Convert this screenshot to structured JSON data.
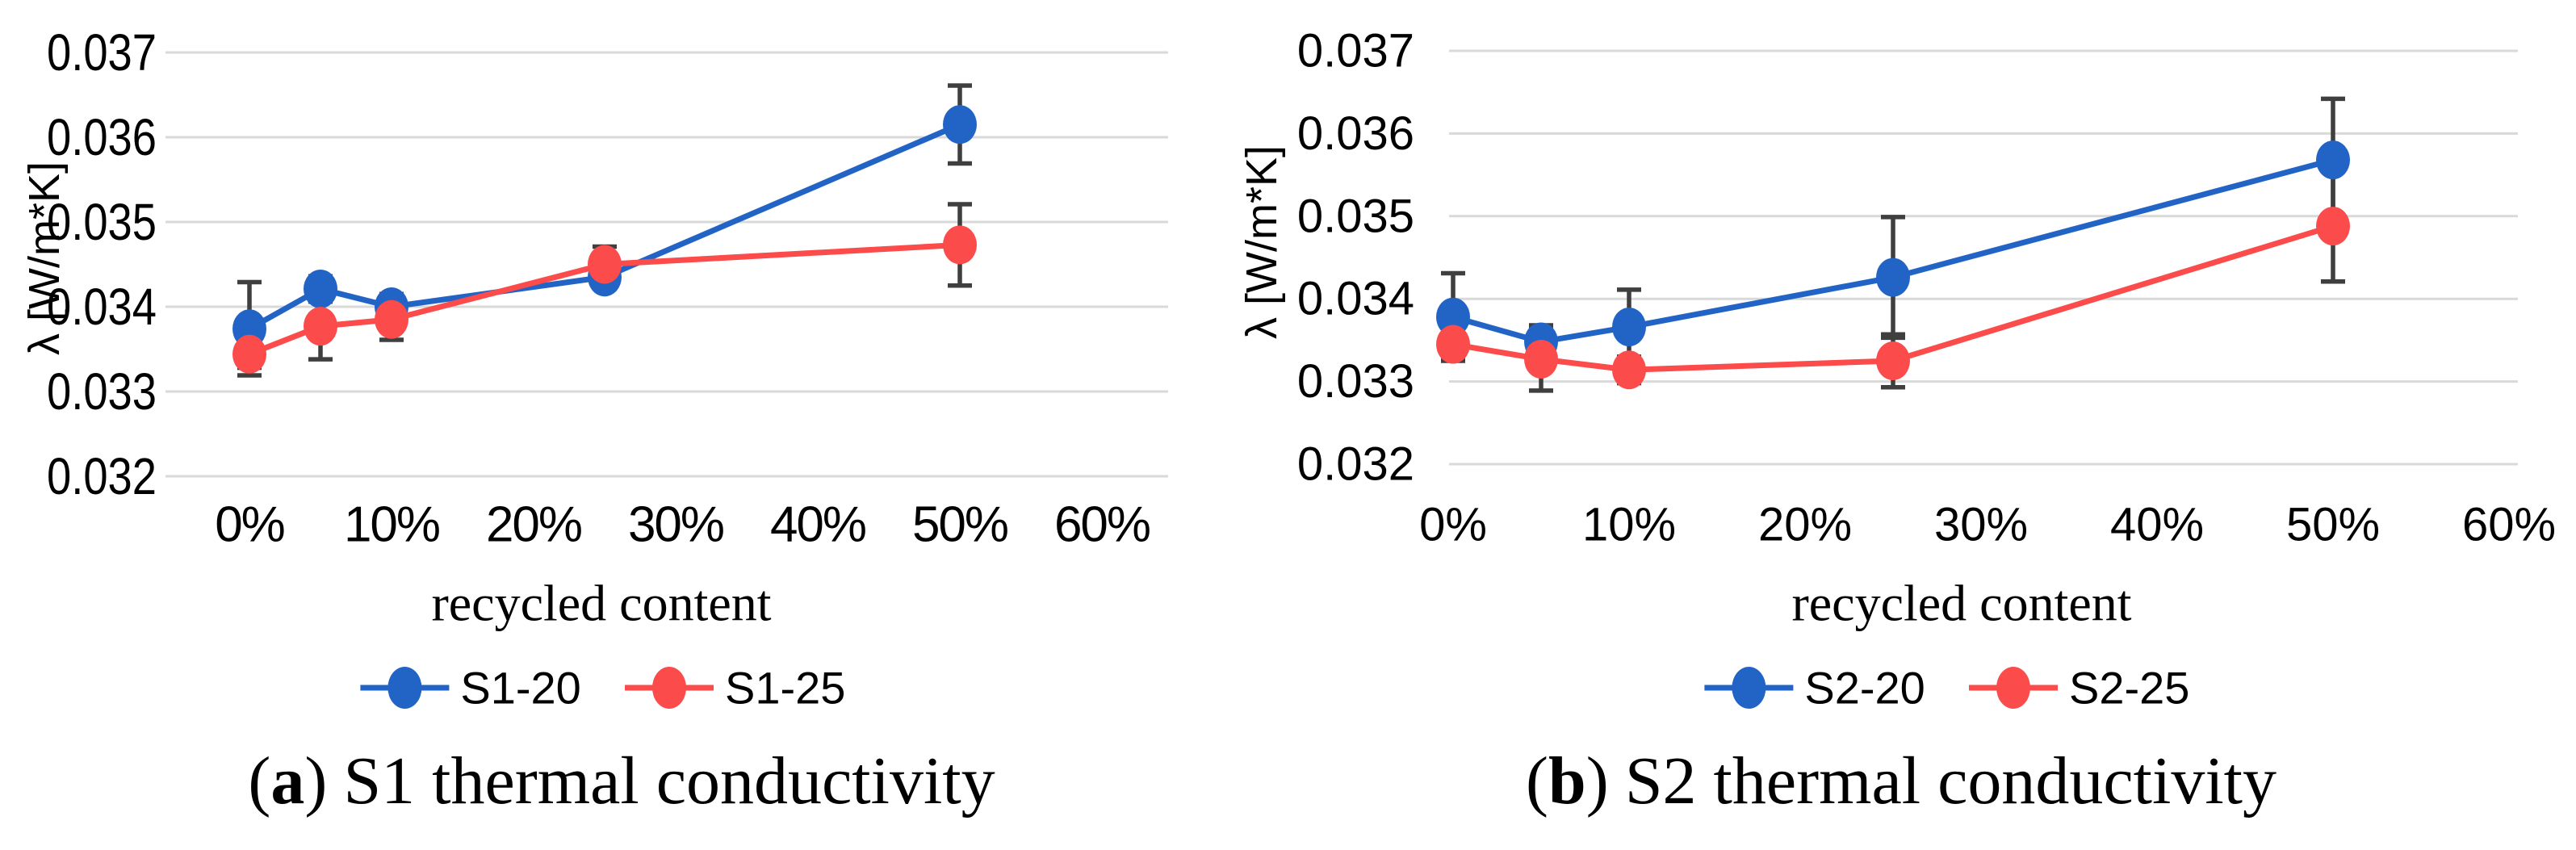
{
  "style": {
    "background": "#ffffff",
    "grid_color": "#d9d9d9",
    "error_bar_color": "#3f3f3f",
    "series_blue": "#2264c6",
    "series_red": "#fb4b4b"
  },
  "chart_data": [
    {
      "id": "s1",
      "type": "line",
      "title": "",
      "xlabel": "recycled content",
      "ylabel": "λ [W/m*K]",
      "ylim": [
        0.032,
        0.037
      ],
      "xlim": [
        -6,
        65
      ],
      "grid": true,
      "legend_position": "bottom",
      "x": [
        0,
        5,
        10,
        25,
        50
      ],
      "x_ticks": [
        0,
        10,
        20,
        30,
        40,
        50,
        60
      ],
      "x_tick_labels": [
        "0%",
        "10%",
        "20%",
        "30%",
        "40%",
        "50%",
        "60%"
      ],
      "y_ticks": [
        0.037,
        0.036,
        0.035,
        0.034,
        0.033,
        0.032
      ],
      "y_tick_labels": [
        "0.037",
        "0.036",
        "0.035",
        "0.034",
        "0.033",
        "0.032"
      ],
      "series": [
        {
          "name": "S1-20",
          "color": "#2264c6",
          "values": [
            0.03374,
            0.03421,
            0.034,
            0.03435,
            0.03615
          ],
          "yerr": [
            0.00055,
            0.00015,
            0.00015,
            0.00011,
            0.00046
          ]
        },
        {
          "name": "S1-25",
          "color": "#fb4b4b",
          "values": [
            0.03344,
            0.03377,
            0.03385,
            0.0345,
            0.03473
          ],
          "yerr": [
            0.00016,
            0.00039,
            0.00024,
            0.00021,
            0.00048
          ]
        }
      ],
      "caption": {
        "open": "(",
        "letter": "a",
        "close": ")",
        "text": "S1 thermal conductivity"
      }
    },
    {
      "id": "s2",
      "type": "line",
      "title": "",
      "xlabel": "recycled content",
      "ylabel": "λ [W/m*K]",
      "ylim": [
        0.032,
        0.037
      ],
      "xlim": [
        0,
        61
      ],
      "grid": true,
      "legend_position": "bottom",
      "x": [
        0,
        5,
        10,
        25,
        50
      ],
      "x_ticks": [
        0,
        10,
        20,
        30,
        40,
        50,
        60
      ],
      "x_tick_labels": [
        "0%",
        "10%",
        "20%",
        "30%",
        "40%",
        "50%",
        "60%"
      ],
      "y_ticks": [
        0.037,
        0.036,
        0.035,
        0.034,
        0.033,
        0.032
      ],
      "y_tick_labels": [
        "0.037",
        "0.036",
        "0.035",
        "0.034",
        "0.033",
        "0.032"
      ],
      "series": [
        {
          "name": "S2-20",
          "color": "#2264c6",
          "values": [
            0.03378,
            0.03348,
            0.03366,
            0.03426,
            0.03568
          ],
          "yerr": [
            0.00053,
            0.0002,
            0.00045,
            0.00073,
            0.00074
          ]
        },
        {
          "name": "S2-25",
          "color": "#fb4b4b",
          "values": [
            0.03345,
            0.03327,
            0.03314,
            0.03325,
            0.03488
          ],
          "yerr": [
            0.00016,
            0.00038,
            0.00016,
            0.00032,
            0.00067
          ]
        }
      ],
      "caption": {
        "open": "(",
        "letter": "b",
        "close": ")",
        "text": "S2 thermal conductivity"
      }
    }
  ]
}
